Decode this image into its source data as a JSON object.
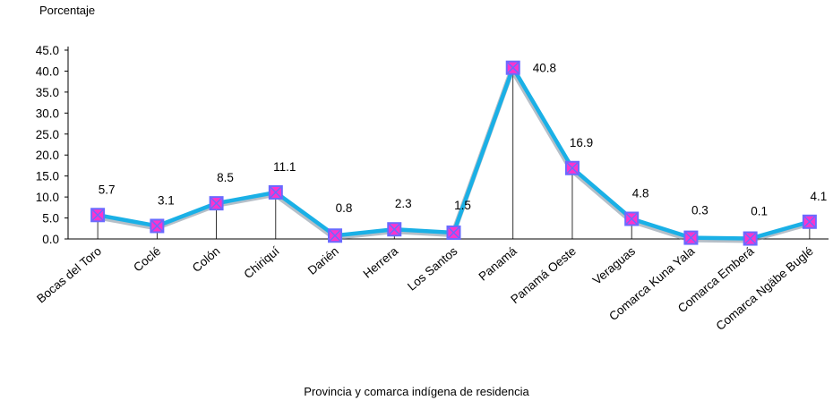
{
  "chart_data": {
    "type": "line",
    "ylabel": "Porcentaje",
    "xlabel": "Provincia y comarca indígena de residencia",
    "ylim": [
      0,
      45
    ],
    "yticks": [
      "0.0",
      "5.0",
      "10.0",
      "15.0",
      "20.0",
      "25.0",
      "30.0",
      "35.0",
      "40.0",
      "45.0"
    ],
    "categories": [
      "Bocas del Toro",
      "Coclé",
      "Colón",
      "Chiriquí",
      "Darién",
      "Herrera",
      "Los Santos",
      "Panamá",
      "Panamá Oeste",
      "Veraguas",
      "Comarca Kuna Yala",
      "Comarca Emberá",
      "Comarca Ngäbe Buglé"
    ],
    "values": [
      5.7,
      3.1,
      8.5,
      11.1,
      0.8,
      2.3,
      1.5,
      40.8,
      16.9,
      4.8,
      0.3,
      0.1,
      4.1
    ],
    "data_labels": [
      "5.7",
      "3.1",
      "8.5",
      "11.1",
      "0.8",
      "2.3",
      "1.5",
      "40.8",
      "16.9",
      "4.8",
      "0.3",
      "0.1",
      "4.1"
    ],
    "colors": {
      "line": "#1ab0e6",
      "marker_fill": "#ff33cc",
      "marker_edge": "#6a6aff"
    },
    "grid": false,
    "legend": "none"
  }
}
